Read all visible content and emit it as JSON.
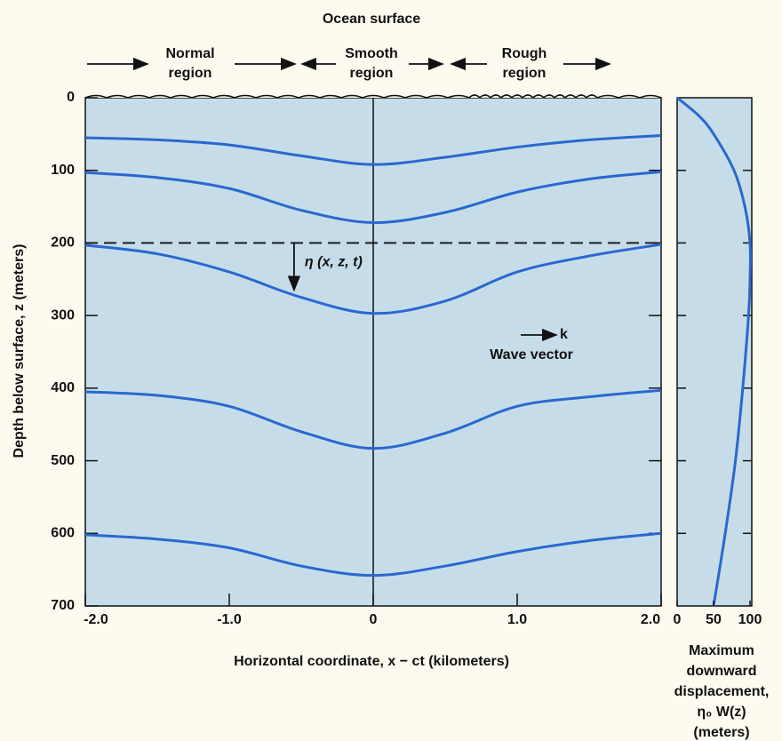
{
  "chart_data": [
    {
      "type": "line",
      "title": "Ocean surface",
      "regions": [
        {
          "lines": [
            "Normal",
            "region"
          ]
        },
        {
          "lines": [
            "Smooth",
            "region"
          ]
        },
        {
          "lines": [
            "Rough",
            "region"
          ]
        }
      ],
      "annotations": {
        "displacement": "η (x, z, t)",
        "k": "k",
        "wave_vector": "Wave vector"
      },
      "xlabel": "Horizontal coordinate, x − ct (kilometers)",
      "ylabel": "Depth below surface, z (meters)",
      "x": [
        -2,
        -1.5,
        -1,
        -0.5,
        0,
        0.5,
        1,
        1.5,
        2
      ],
      "series": [
        {
          "color": "#2a68d0",
          "values": [
            55,
            58,
            65,
            80,
            92,
            82,
            68,
            58,
            52
          ]
        },
        {
          "color": "#2a68d0",
          "values": [
            103,
            110,
            125,
            155,
            172,
            158,
            130,
            112,
            102
          ]
        },
        {
          "color": "#2a68d0",
          "values": [
            203,
            215,
            240,
            275,
            297,
            280,
            240,
            218,
            202
          ]
        },
        {
          "color": "#2a68d0",
          "values": [
            405,
            410,
            425,
            460,
            483,
            462,
            425,
            412,
            403
          ]
        },
        {
          "color": "#2a68d0",
          "values": [
            602,
            608,
            620,
            645,
            658,
            645,
            625,
            610,
            600
          ]
        }
      ],
      "reference_depth": 200,
      "xlim": [
        -2,
        2
      ],
      "xticks": [
        {
          "value": -2,
          "label": "-2.0"
        },
        {
          "value": -1,
          "label": "-1.0"
        },
        0,
        {
          "value": 1,
          "label": "1.0"
        },
        {
          "value": 2,
          "label": "2.0"
        }
      ],
      "ylim": [
        0,
        700
      ],
      "y_inverted": true,
      "yticks": [
        0,
        100,
        200,
        300,
        400,
        500,
        600,
        700
      ]
    },
    {
      "type": "profile",
      "xlabel": [
        "Maximum",
        "downward",
        "displacement,",
        "η₀ W(z)",
        "(meters)"
      ],
      "y": [
        0,
        25,
        50,
        100,
        150,
        200,
        250,
        300,
        400,
        500,
        600,
        700
      ],
      "values": [
        0,
        30,
        50,
        78,
        93,
        100,
        100,
        98,
        90,
        80,
        66,
        50
      ],
      "color": "#2a68d0",
      "xlim": [
        0,
        100
      ],
      "xticks": [
        0,
        50,
        100
      ]
    }
  ]
}
